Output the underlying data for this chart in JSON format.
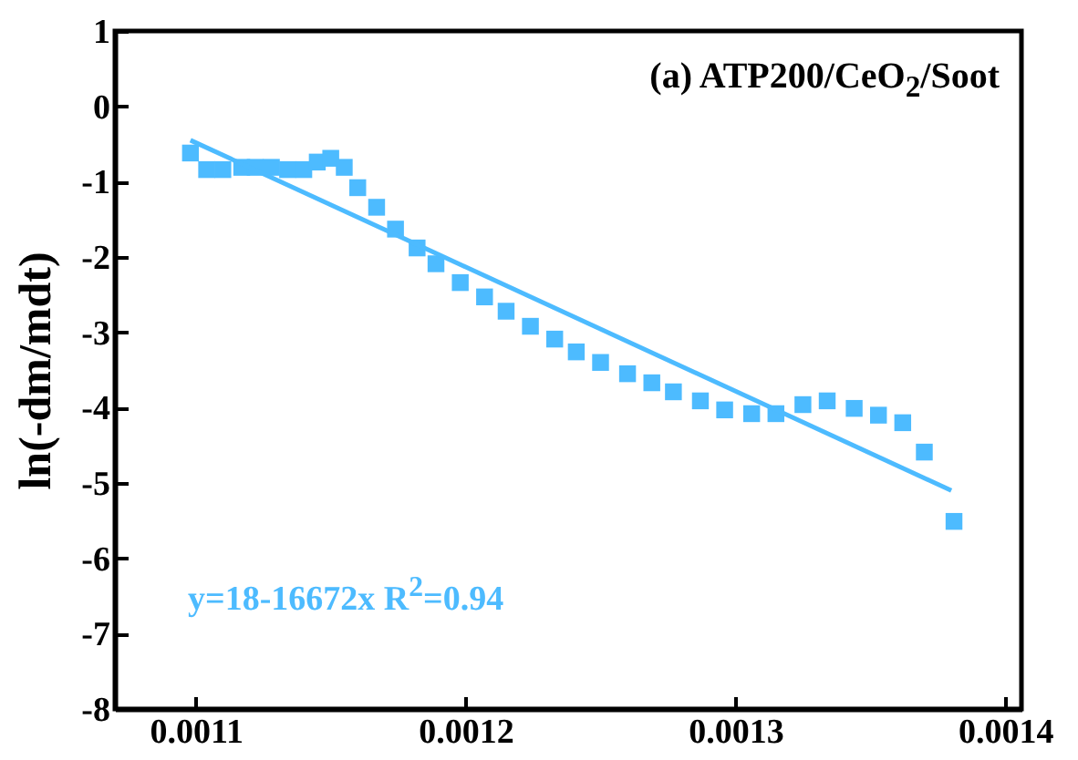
{
  "chart_data": {
    "type": "scatter",
    "xlabel": null,
    "ylabel": "ln(-dm/mdt)",
    "annotations": [
      "(a) ATP200/CeO$_{2}$/Soot",
      "y=18-16672x R$^{2}$=0.94"
    ],
    "xlim": [
      0.00107,
      0.001406
    ],
    "xticks": [
      0.0011,
      0.0012,
      0.0013,
      0.0014
    ],
    "ylim": [
      -8,
      1
    ],
    "yticks": [
      -8,
      -7,
      -6,
      -5,
      -4,
      -3,
      -2,
      -1,
      0,
      1
    ],
    "grid": false,
    "series": [
      {
        "color": "#4dbbff",
        "marker": "square",
        "x": [
          0.001098,
          0.001104,
          0.00111,
          0.001117,
          0.001122,
          0.001128,
          0.001134,
          0.00114,
          0.001145,
          0.00115,
          0.001155,
          0.00116,
          0.001167,
          0.001174,
          0.001182,
          0.001189,
          0.001198,
          0.001207,
          0.001215,
          0.001224,
          0.001233,
          0.001241,
          0.00125,
          0.00126,
          0.001269,
          0.001277,
          0.001287,
          0.001296,
          0.001306,
          0.001315,
          0.001325,
          0.001334,
          0.001344,
          0.001353,
          0.001362,
          0.00137,
          0.001381
        ],
        "values": [
          -0.62,
          -0.84,
          -0.84,
          -0.81,
          -0.81,
          -0.81,
          -0.84,
          -0.84,
          -0.74,
          -0.69,
          -0.81,
          -1.08,
          -1.34,
          -1.63,
          -1.88,
          -2.09,
          -2.34,
          -2.53,
          -2.72,
          -2.92,
          -3.09,
          -3.26,
          -3.4,
          -3.55,
          -3.67,
          -3.79,
          -3.91,
          -4.03,
          -4.08,
          -4.08,
          -3.96,
          -3.91,
          -4.01,
          -4.1,
          -4.2,
          -4.59,
          -5.51
        ]
      },
      {
        "type": "line",
        "color": "#4dbbff",
        "x": [
          0.001098,
          0.00138
        ],
        "values": [
          -0.45,
          -5.1
        ]
      }
    ]
  }
}
